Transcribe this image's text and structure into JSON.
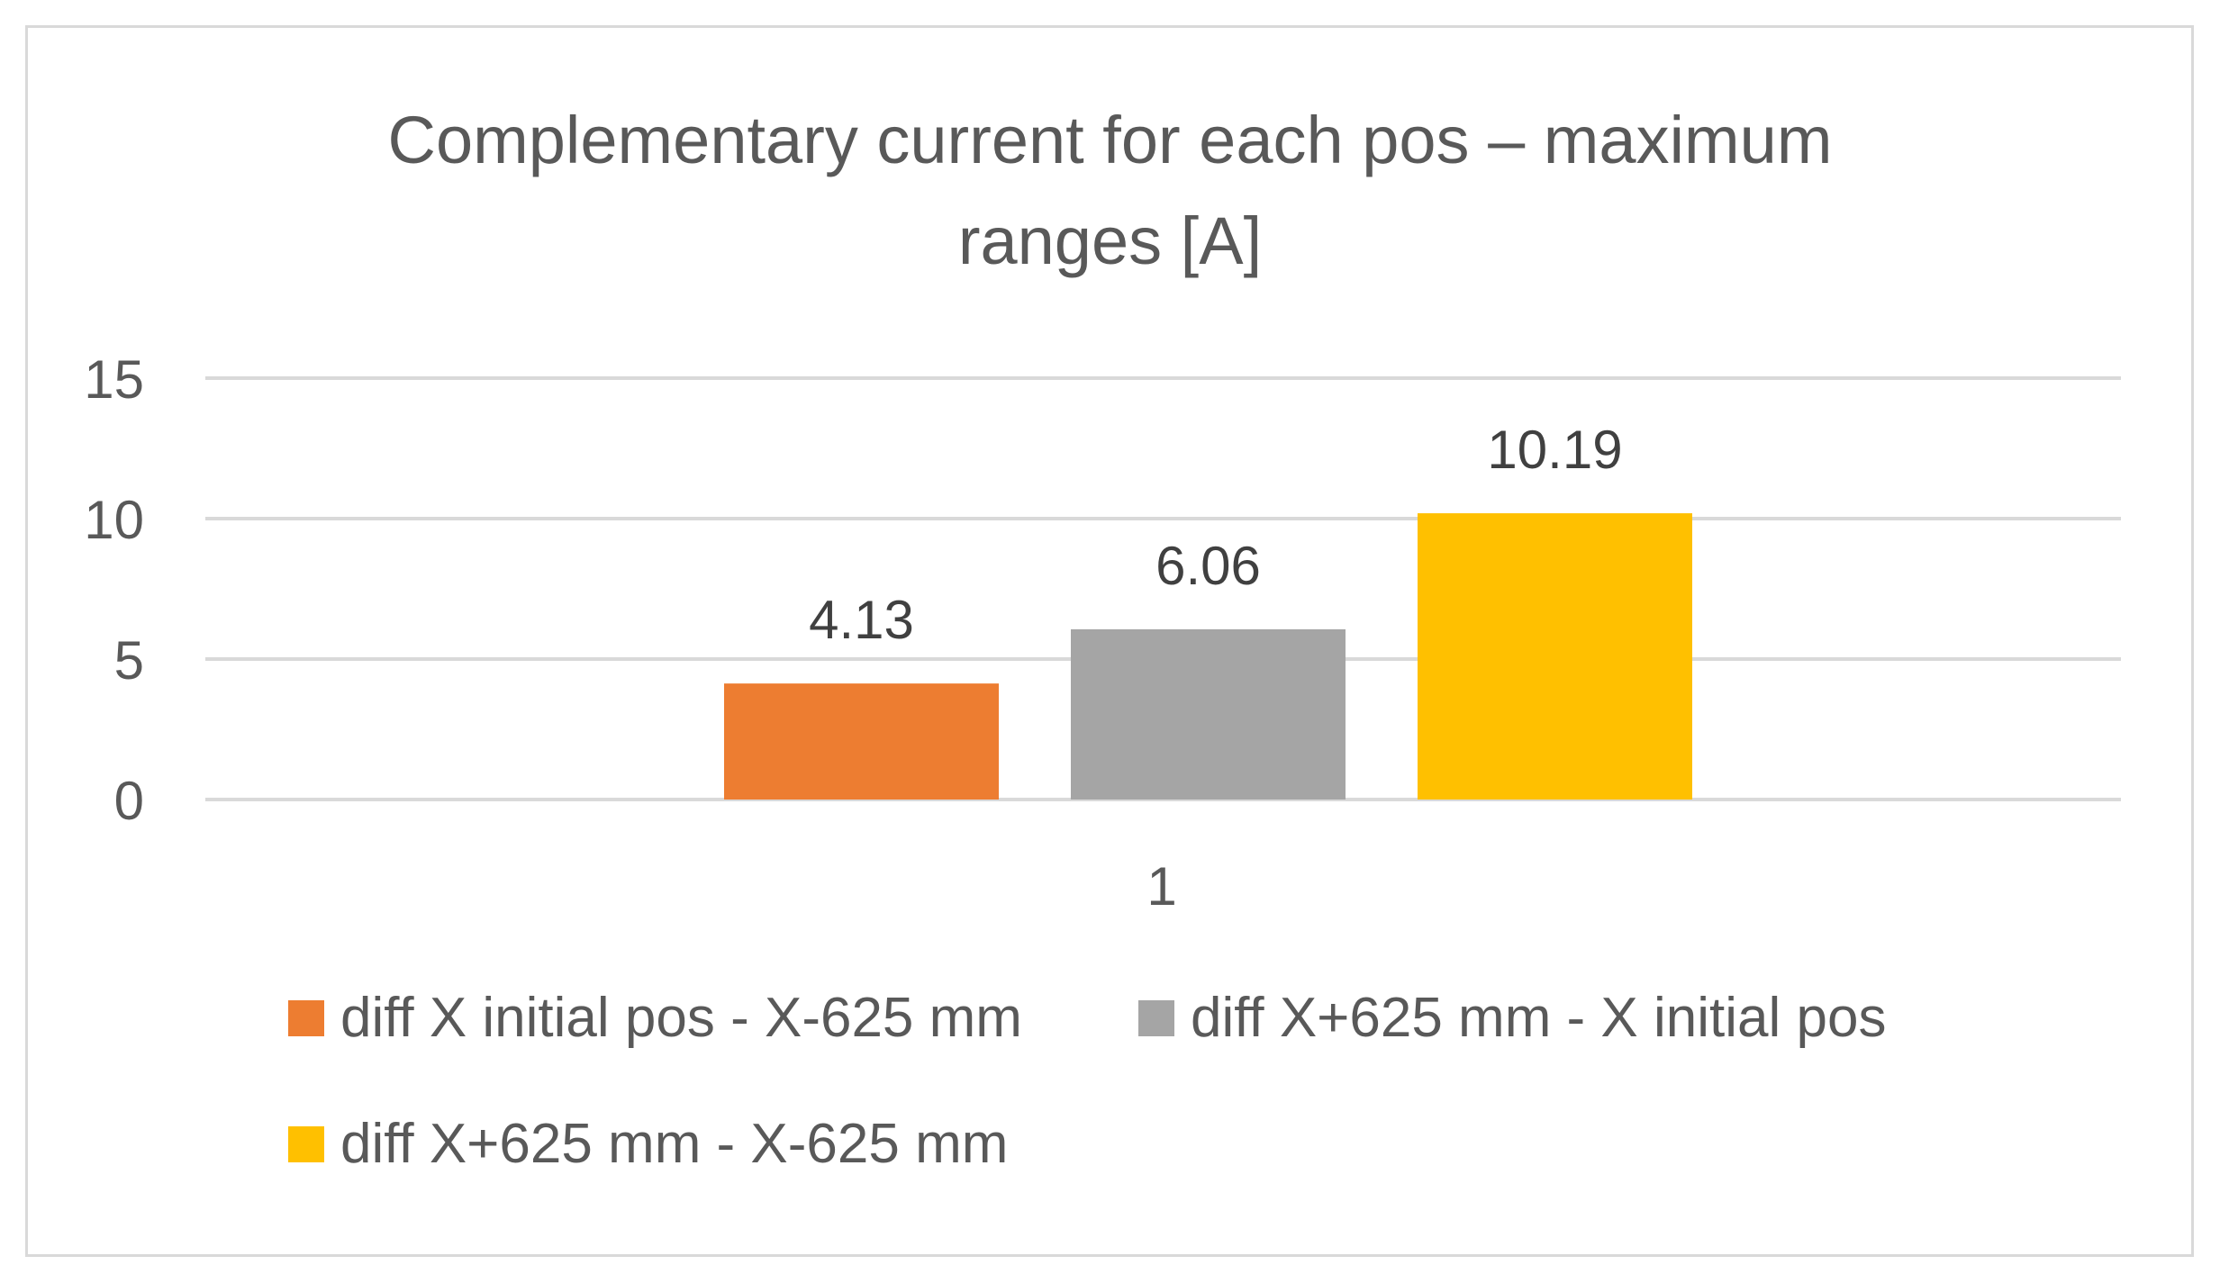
{
  "chart_data": {
    "type": "bar",
    "title": "Complementary current for each pos – maximum ranges [A]",
    "title_lines": [
      "Complementary current for each pos – maximum",
      "ranges [A]"
    ],
    "categories": [
      "1"
    ],
    "series": [
      {
        "name": "diff X initial pos - X-625 mm",
        "values": [
          4.13
        ],
        "color": "#ed7d31"
      },
      {
        "name": "diff X+625 mm - X initial pos",
        "values": [
          6.06
        ],
        "color": "#a5a5a5"
      },
      {
        "name": "diff X+625 mm - X-625 mm",
        "values": [
          10.19
        ],
        "color": "#ffc000"
      }
    ],
    "data_labels": [
      "4.13",
      "6.06",
      "10.19"
    ],
    "ylim": [
      0,
      15
    ],
    "yticks": [
      0,
      5,
      10,
      15
    ],
    "grid": true,
    "legend_position": "bottom"
  }
}
